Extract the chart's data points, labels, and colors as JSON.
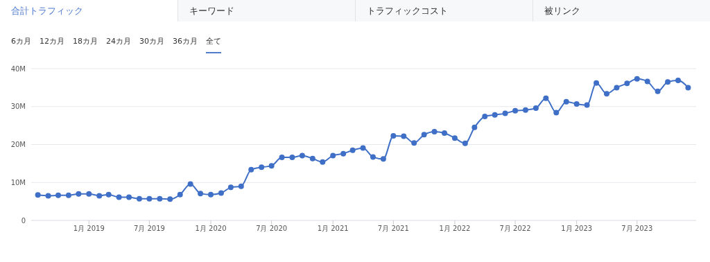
{
  "chart_data": {
    "type": "line",
    "annotations": [
      "合計トラフィック",
      "キーワード",
      "トラフィックコスト",
      "被リンク",
      "6カ月",
      "12カ月",
      "18カ月",
      "24カ月",
      "30カ月",
      "36カ月",
      "全て"
    ],
    "x": [
      "2018-08",
      "2018-09",
      "2018-10",
      "2018-11",
      "2018-12",
      "2019-01",
      "2019-02",
      "2019-03",
      "2019-04",
      "2019-05",
      "2019-06",
      "2019-07",
      "2019-08",
      "2019-09",
      "2019-10",
      "2019-11",
      "2019-12",
      "2020-01",
      "2020-02",
      "2020-03",
      "2020-04",
      "2020-05",
      "2020-06",
      "2020-07",
      "2020-08",
      "2020-09",
      "2020-10",
      "2020-11",
      "2020-12",
      "2021-01",
      "2021-02",
      "2021-03",
      "2021-04",
      "2021-05",
      "2021-06",
      "2021-07",
      "2021-08",
      "2021-09",
      "2021-10",
      "2021-11",
      "2021-12",
      "2022-01",
      "2022-02",
      "2022-03",
      "2022-04",
      "2022-05",
      "2022-06",
      "2022-07",
      "2022-08",
      "2022-09",
      "2022-10",
      "2022-11",
      "2022-12",
      "2023-01",
      "2023-02",
      "2023-03",
      "2023-04",
      "2023-05",
      "2023-06",
      "2023-07",
      "2023-08",
      "2023-09",
      "2023-10",
      "2023-11",
      "2023-12"
    ],
    "series": [
      {
        "color": "#3f6fc6",
        "values": [
          6.7,
          6.5,
          6.6,
          6.6,
          7.0,
          7.0,
          6.5,
          6.8,
          6.1,
          6.1,
          5.7,
          5.7,
          5.7,
          5.6,
          6.8,
          9.6,
          7.1,
          6.8,
          7.2,
          8.7,
          9.0,
          13.4,
          14.0,
          14.4,
          16.6,
          16.6,
          17.1,
          16.3,
          15.4,
          17.1,
          17.6,
          18.5,
          19.1,
          16.7,
          16.2,
          22.3,
          22.2,
          20.4,
          22.6,
          23.4,
          23.0,
          21.7,
          20.3,
          24.5,
          27.4,
          27.8,
          28.2,
          28.9,
          29.1,
          29.6,
          32.2,
          28.4,
          31.3,
          30.7,
          30.4,
          36.2,
          33.4,
          35.0,
          36.1,
          37.3,
          36.6,
          34.0,
          36.5,
          36.9,
          35.0
        ]
      }
    ],
    "xlim": [
      "2018-07-12",
      "2023-12-25"
    ],
    "xticks": [
      {
        "value": "2019-01",
        "label": "1月 2019"
      },
      {
        "value": "2019-07",
        "label": "7月 2019"
      },
      {
        "value": "2020-01",
        "label": "1月 2020"
      },
      {
        "value": "2020-07",
        "label": "7月 2020"
      },
      {
        "value": "2021-01",
        "label": "1月 2021"
      },
      {
        "value": "2021-07",
        "label": "7月 2021"
      },
      {
        "value": "2022-01",
        "label": "1月 2022"
      },
      {
        "value": "2022-07",
        "label": "7月 2022"
      },
      {
        "value": "2023-01",
        "label": "1月 2023"
      },
      {
        "value": "2023-07",
        "label": "7月 2023"
      }
    ],
    "ylim": [
      0,
      40
    ],
    "yticks": [
      0,
      {
        "value": 10,
        "label": "10M"
      },
      {
        "value": 20,
        "label": "20M"
      },
      {
        "value": 30,
        "label": "30M"
      },
      {
        "value": 40,
        "label": "40M"
      }
    ],
    "grid": "y",
    "marker": "circle",
    "line_style": "solid",
    "legend": false
  }
}
